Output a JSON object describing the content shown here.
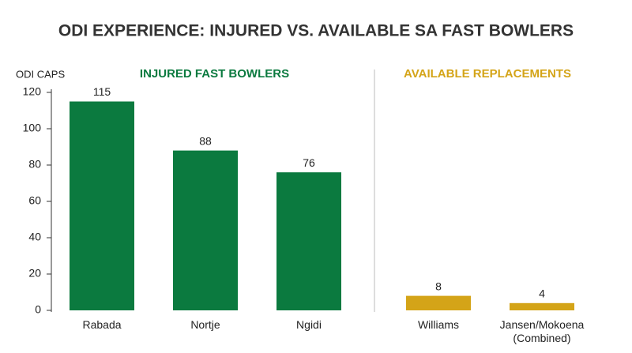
{
  "chart_data": {
    "type": "bar",
    "title": "ODI EXPERIENCE: INJURED VS. AVAILABLE SA FAST BOWLERS",
    "y_label": "ODI CAPS",
    "groups": [
      {
        "name": "INJURED FAST BOWLERS",
        "color": "#0b7a3f",
        "categories": [
          "Rabada",
          "Nortje",
          "Ngidi"
        ],
        "values": [
          115,
          88,
          76
        ]
      },
      {
        "name": "AVAILABLE REPLACEMENTS",
        "color": "#d4a418",
        "categories": [
          "Williams",
          "Jansen/Mokoena (Combined)"
        ],
        "values": [
          8,
          4
        ]
      }
    ],
    "ylim": [
      0,
      120
    ],
    "yticks": [
      0,
      20,
      40,
      60,
      80,
      100,
      120
    ]
  }
}
